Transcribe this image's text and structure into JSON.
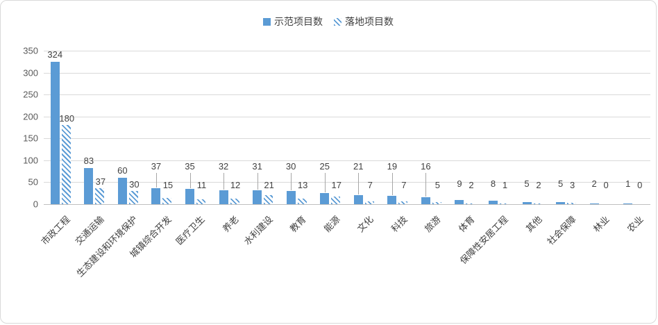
{
  "chart": {
    "legend": [
      {
        "label": "示范项目数",
        "swatch": "solid"
      },
      {
        "label": "落地项目数",
        "swatch": "hatch"
      }
    ],
    "colors": {
      "bar_blue": "#5B9BD5",
      "gridline": "#d9d9d9",
      "axis_line": "#bfbfbf",
      "tick_text": "#595959",
      "label_text": "#404040",
      "leader_line": "#a6a6a6",
      "border": "#d9d9d9"
    }
  },
  "chart_data": {
    "type": "bar",
    "title": "",
    "xlabel": "",
    "ylabel": "",
    "categories": [
      "市政工程",
      "交通运输",
      "生态建设和环境保护",
      "城镇综合开发",
      "医疗卫生",
      "养老",
      "水利建设",
      "教育",
      "能源",
      "文化",
      "科技",
      "旅游",
      "体育",
      "保障性安居工程",
      "其他",
      "社会保障",
      "林业",
      "农业"
    ],
    "series": [
      {
        "name": "示范项目数",
        "style": "solid",
        "values": [
          324,
          83,
          60,
          37,
          35,
          32,
          31,
          30,
          25,
          21,
          19,
          16,
          9,
          8,
          5,
          5,
          2,
          1
        ]
      },
      {
        "name": "落地项目数",
        "style": "hatch",
        "values": [
          180,
          37,
          30,
          15,
          11,
          12,
          21,
          13,
          17,
          7,
          7,
          5,
          2,
          1,
          2,
          3,
          0,
          0
        ]
      }
    ],
    "ylim": [
      0,
      350
    ],
    "ytick_step": 50,
    "grid": true,
    "legend_position": "top",
    "data_labels": true
  }
}
